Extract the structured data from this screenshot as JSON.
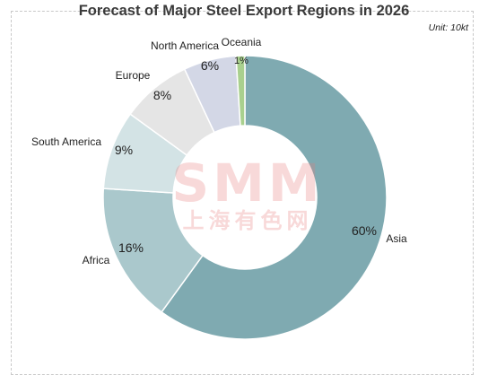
{
  "chart_data": {
    "type": "pie",
    "title": "Forecast of Major Steel Export Regions in 2026",
    "unit": "Unit: 10kt",
    "hole": true,
    "slices": [
      {
        "label": "Asia",
        "value": 60,
        "value_label": "60%",
        "color": "#7faab1"
      },
      {
        "label": "Africa",
        "value": 16,
        "value_label": "16%",
        "color": "#aac8cc"
      },
      {
        "label": "South America",
        "value": 9,
        "value_label": "9%",
        "color": "#d3e3e5"
      },
      {
        "label": "Europe",
        "value": 8,
        "value_label": "8%",
        "color": "#e5e5e5"
      },
      {
        "label": "North America",
        "value": 6,
        "value_label": "6%",
        "color": "#d3d7e6"
      },
      {
        "label": "Oceania",
        "value": 1,
        "value_label": "1%",
        "color": "#a9d08e"
      }
    ]
  },
  "watermark": {
    "brand": "SMM",
    "subtitle": "上海有色网"
  }
}
